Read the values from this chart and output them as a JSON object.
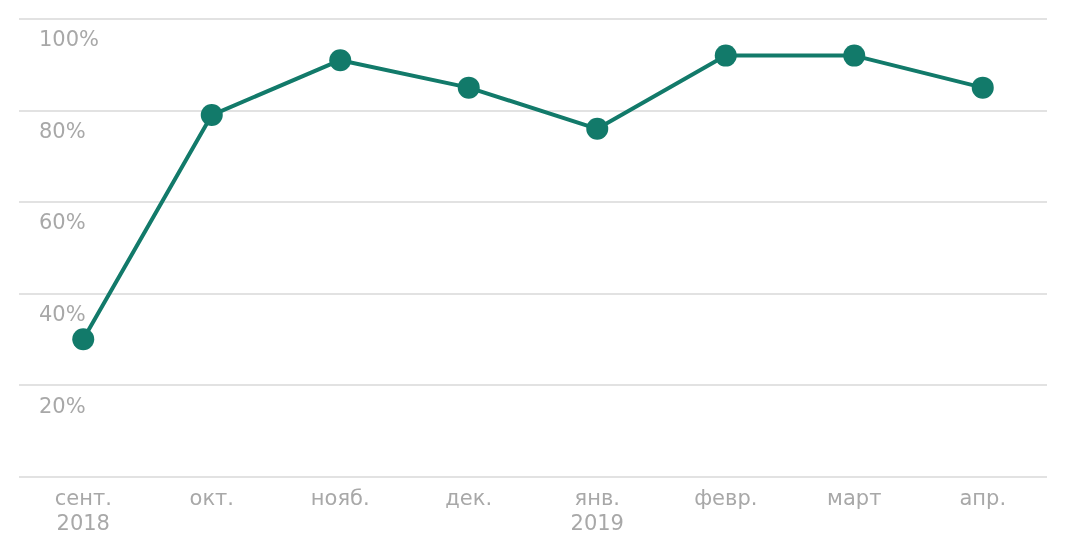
{
  "chart_data": {
    "type": "line",
    "categories": [
      "сент. 2018",
      "окт.",
      "нояб.",
      "дек.",
      "янв. 2019",
      "февр.",
      "март",
      "апр."
    ],
    "series": [
      {
        "color": "#127a6a",
        "values": [
          30,
          79,
          91,
          85,
          76,
          92,
          92,
          85
        ]
      }
    ],
    "ylim": [
      0,
      100
    ],
    "yticks": [
      {
        "value": 0,
        "label": null
      },
      {
        "value": 20,
        "label": "20%"
      },
      {
        "value": 40,
        "label": "40%"
      },
      {
        "value": 60,
        "label": "60%"
      },
      {
        "value": 80,
        "label": "80%"
      },
      {
        "value": 100,
        "label": "100%"
      }
    ],
    "grid": "y",
    "marker": "circle",
    "line_style": "solid"
  }
}
